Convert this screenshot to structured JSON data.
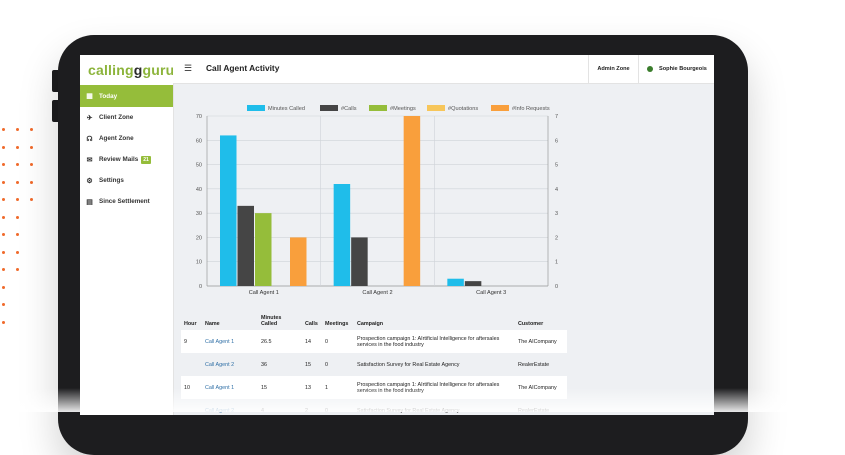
{
  "app": {
    "logo_part1": "calling",
    "logo_part2": "g",
    "logo_part3": "guru",
    "page_title": "Call Agent Activity"
  },
  "header": {
    "admin_zone": "Admin Zone",
    "user_name": "Sophie Bourgeois",
    "status_color": "#3a7d2c"
  },
  "sidebar": {
    "items": [
      {
        "label": "Today",
        "icon": "bar-chart-icon",
        "glyph": "▦",
        "active": true
      },
      {
        "label": "Client Zone",
        "icon": "walking-icon",
        "glyph": "✈"
      },
      {
        "label": "Agent Zone",
        "icon": "headset-icon",
        "glyph": "☊"
      },
      {
        "label": "Review Mails",
        "icon": "inbox-icon",
        "glyph": "✉",
        "badge": "21"
      },
      {
        "label": "Settings",
        "icon": "gears-icon",
        "glyph": "⚙"
      },
      {
        "label": "Since Settlement",
        "icon": "calendar-icon",
        "glyph": "▤"
      }
    ]
  },
  "chart_data": {
    "type": "bar",
    "categories": [
      "Call Agent 1",
      "Call Agent 2",
      "Call Agent 3"
    ],
    "series": [
      {
        "name": "Minutes Called",
        "axis": "left",
        "color": "#1fbdea",
        "values": [
          62,
          42,
          3
        ]
      },
      {
        "name": "#Calls",
        "axis": "right",
        "color": "#454545",
        "values": [
          3.3,
          2,
          0.2
        ]
      },
      {
        "name": "#Meetings",
        "axis": "right",
        "color": "#95bd3a",
        "values": [
          3,
          0,
          0
        ]
      },
      {
        "name": "#Quotations",
        "axis": "right",
        "color": "#f7c65a",
        "values": [
          0,
          0,
          0
        ]
      },
      {
        "name": "#Info Requests",
        "axis": "right",
        "color": "#f99f3c",
        "values": [
          2,
          7,
          0
        ]
      }
    ],
    "y_left": {
      "min": 0,
      "max": 70,
      "ticks": [
        0,
        10,
        20,
        30,
        40,
        50,
        60,
        70
      ]
    },
    "y_right": {
      "min": 0,
      "max": 7,
      "ticks": [
        0,
        1,
        2,
        3,
        4,
        5,
        6,
        7
      ]
    },
    "legend_position": "top",
    "grid": true
  },
  "table": {
    "headers": [
      "Hour",
      "Name",
      "Minutes Called",
      "Calls",
      "Meetings",
      "Campaign",
      "Customer"
    ],
    "rows": [
      {
        "hour": "9",
        "name": "Call Agent 1",
        "minutes": "26.5",
        "calls": "14",
        "meetings": "0",
        "campaign": "Prospection campaign 1: AIrtificial Intelligence for aftersales services in the food industry",
        "customer": "The AICompany"
      },
      {
        "hour": "",
        "name": "Call Agent 2",
        "minutes": "36",
        "calls": "15",
        "meetings": "0",
        "campaign": "Satisfaction Survey for Real Estate Agency",
        "customer": "RealerEstate"
      },
      {
        "hour": "10",
        "name": "Call Agent 1",
        "minutes": "15",
        "calls": "13",
        "meetings": "1",
        "campaign": "Prospection campaign 1: AIrtificial Intelligence for aftersales services in the food industry",
        "customer": "The AICompany"
      },
      {
        "hour": "",
        "name": "Call Agent 2",
        "minutes": "4",
        "calls": "2",
        "meetings": "0",
        "campaign": "Satisfaction Survey for Real Estate Agency",
        "customer": "RealerEstate"
      }
    ]
  }
}
